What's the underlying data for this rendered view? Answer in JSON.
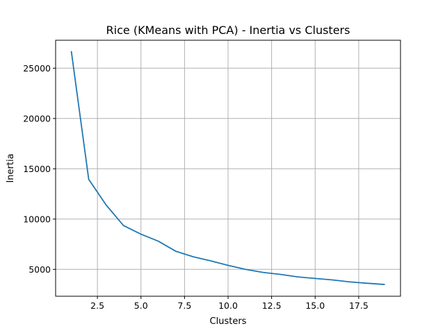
{
  "chart_data": {
    "type": "line",
    "title": "Rice (KMeans with PCA) - Inertia vs Clusters",
    "xlabel": "Clusters",
    "ylabel": "Inertia",
    "xlim": [
      0.1,
      19.9
    ],
    "ylim": [
      2330,
      27780
    ],
    "xticks": [
      2.5,
      5.0,
      7.5,
      10.0,
      12.5,
      15.0,
      17.5
    ],
    "xtick_labels": [
      "2.5",
      "5.0",
      "7.5",
      "10.0",
      "12.5",
      "15.0",
      "17.5"
    ],
    "yticks": [
      5000,
      10000,
      15000,
      20000,
      25000
    ],
    "ytick_labels": [
      "5000",
      "10000",
      "15000",
      "20000",
      "25000"
    ],
    "grid": true,
    "line_color": "#1f77b4",
    "series": [
      {
        "x": [
          1,
          2,
          3,
          4,
          5,
          6,
          7,
          8,
          9,
          10,
          11,
          12,
          13,
          14,
          15,
          16,
          17,
          18,
          19
        ],
        "values": [
          26700,
          13950,
          11400,
          9350,
          8500,
          7800,
          6800,
          6250,
          5850,
          5400,
          5000,
          4700,
          4500,
          4250,
          4100,
          3950,
          3750,
          3620,
          3500
        ]
      }
    ]
  }
}
